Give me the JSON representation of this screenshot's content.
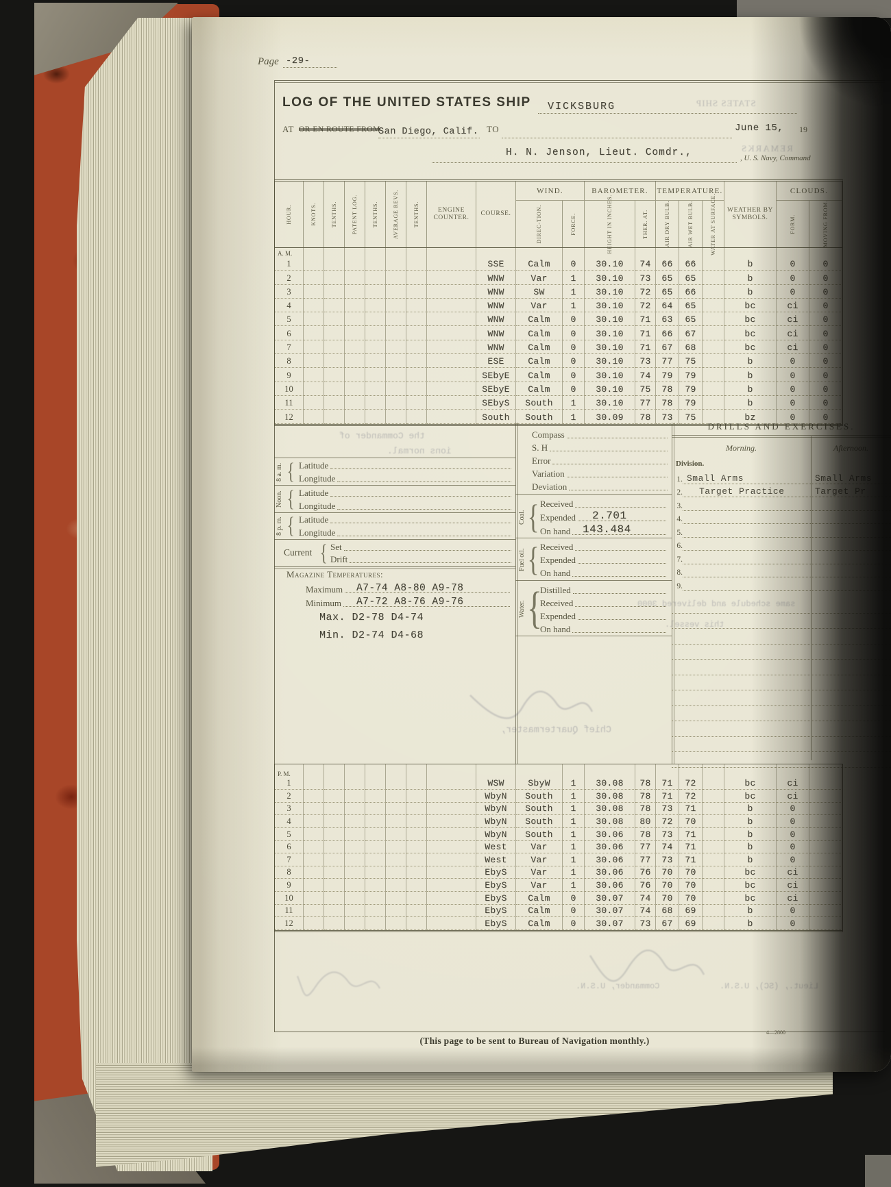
{
  "page": {
    "label": "Page",
    "number": "-29-",
    "footer": "(This page to be sent to Bureau of Navigation monthly.)",
    "form_number": "4—2800"
  },
  "header": {
    "title": "LOG OF THE UNITED STATES SHIP",
    "ship_name": "VICKSBURG",
    "at_label": "AT",
    "route_label": "OR EN ROUTE FROM",
    "from_value": "San Diego, Calif.",
    "to_label": "TO",
    "date_value": "June 15,",
    "year_prefix": "19",
    "commander_value": "H. N. Jenson, Lieut. Comdr.,",
    "commander_suffix": ", U. S. Navy, Command"
  },
  "log_table": {
    "groups": {
      "wind": "WIND.",
      "barometer": "BAROMETER.",
      "temperature": "TEMPERATURE.",
      "clouds": "CLOUDS."
    },
    "columns": {
      "hour": "Hour.",
      "knots": "Knots.",
      "tenths1": "Tenths.",
      "patent_log": "Patent Log.",
      "tenths2": "Tenths.",
      "avg_revs": "Average Revs.",
      "tenths3": "Tenths.",
      "engine_counter": "Engine Counter.",
      "course": "Course.",
      "wind_direction": "Direc-tion.",
      "wind_force": "Force.",
      "barometer_height": "Height in Inches.",
      "ther_at": "Ther. At.",
      "air_dry": "Air Dry Bulb.",
      "air_wet": "Air Wet Bulb.",
      "water_surface": "Water at Surface.",
      "weather": "Weather by Symbols.",
      "clouds_form": "Form.",
      "clouds_moving": "Moving From."
    },
    "am_label": "A. M.",
    "pm_label": "P. M.",
    "am_rows": [
      {
        "hour": "1",
        "course": "SSE",
        "wind_direction": "Calm",
        "wind_force": "0",
        "barometer_height": "30.10",
        "ther_at": "74",
        "air_dry": "66",
        "air_wet": "66",
        "weather": "b",
        "clouds_form": "0",
        "clouds_moving": "0"
      },
      {
        "hour": "2",
        "course": "WNW",
        "wind_direction": "Var",
        "wind_force": "1",
        "barometer_height": "30.10",
        "ther_at": "73",
        "air_dry": "65",
        "air_wet": "65",
        "weather": "b",
        "clouds_form": "0",
        "clouds_moving": "0"
      },
      {
        "hour": "3",
        "course": "WNW",
        "wind_direction": "SW",
        "wind_force": "1",
        "barometer_height": "30.10",
        "ther_at": "72",
        "air_dry": "65",
        "air_wet": "66",
        "weather": "b",
        "clouds_form": "0",
        "clouds_moving": "0"
      },
      {
        "hour": "4",
        "course": "WNW",
        "wind_direction": "Var",
        "wind_force": "1",
        "barometer_height": "30.10",
        "ther_at": "72",
        "air_dry": "64",
        "air_wet": "65",
        "weather": "bc",
        "clouds_form": "ci",
        "clouds_moving": "0"
      },
      {
        "hour": "5",
        "course": "WNW",
        "wind_direction": "Calm",
        "wind_force": "0",
        "barometer_height": "30.10",
        "ther_at": "71",
        "air_dry": "63",
        "air_wet": "65",
        "weather": "bc",
        "clouds_form": "ci",
        "clouds_moving": "0"
      },
      {
        "hour": "6",
        "course": "WNW",
        "wind_direction": "Calm",
        "wind_force": "0",
        "barometer_height": "30.10",
        "ther_at": "71",
        "air_dry": "66",
        "air_wet": "67",
        "weather": "bc",
        "clouds_form": "ci",
        "clouds_moving": "0"
      },
      {
        "hour": "7",
        "course": "WNW",
        "wind_direction": "Calm",
        "wind_force": "0",
        "barometer_height": "30.10",
        "ther_at": "71",
        "air_dry": "67",
        "air_wet": "68",
        "weather": "bc",
        "clouds_form": "ci",
        "clouds_moving": "0"
      },
      {
        "hour": "8",
        "course": "ESE",
        "wind_direction": "Calm",
        "wind_force": "0",
        "barometer_height": "30.10",
        "ther_at": "73",
        "air_dry": "77",
        "air_wet": "75",
        "weather": "b",
        "clouds_form": "0",
        "clouds_moving": "0"
      },
      {
        "hour": "9",
        "course": "SEbyE",
        "wind_direction": "Calm",
        "wind_force": "0",
        "barometer_height": "30.10",
        "ther_at": "74",
        "air_dry": "79",
        "air_wet": "79",
        "weather": "b",
        "clouds_form": "0",
        "clouds_moving": "0"
      },
      {
        "hour": "10",
        "course": "SEbyE",
        "wind_direction": "Calm",
        "wind_force": "0",
        "barometer_height": "30.10",
        "ther_at": "75",
        "air_dry": "78",
        "air_wet": "79",
        "weather": "b",
        "clouds_form": "0",
        "clouds_moving": "0"
      },
      {
        "hour": "11",
        "course": "SEbyS",
        "wind_direction": "South",
        "wind_force": "1",
        "barometer_height": "30.10",
        "ther_at": "77",
        "air_dry": "78",
        "air_wet": "79",
        "weather": "b",
        "clouds_form": "0",
        "clouds_moving": "0"
      },
      {
        "hour": "12",
        "course": "South",
        "wind_direction": "South",
        "wind_force": "1",
        "barometer_height": "30.09",
        "ther_at": "78",
        "air_dry": "73",
        "air_wet": "75",
        "weather": "bz",
        "clouds_form": "0",
        "clouds_moving": "0"
      }
    ],
    "pm_rows": [
      {
        "hour": "1",
        "course": "WSW",
        "wind_direction": "SbyW",
        "wind_force": "1",
        "barometer_height": "30.08",
        "ther_at": "78",
        "air_dry": "71",
        "air_wet": "72",
        "weather": "bc",
        "clouds_form": "ci",
        "clouds_moving": ""
      },
      {
        "hour": "2",
        "course": "WbyN",
        "wind_direction": "South",
        "wind_force": "1",
        "barometer_height": "30.08",
        "ther_at": "78",
        "air_dry": "71",
        "air_wet": "72",
        "weather": "bc",
        "clouds_form": "ci",
        "clouds_moving": ""
      },
      {
        "hour": "3",
        "course": "WbyN",
        "wind_direction": "South",
        "wind_force": "1",
        "barometer_height": "30.08",
        "ther_at": "78",
        "air_dry": "73",
        "air_wet": "71",
        "weather": "b",
        "clouds_form": "0",
        "clouds_moving": ""
      },
      {
        "hour": "4",
        "course": "WbyN",
        "wind_direction": "South",
        "wind_force": "1",
        "barometer_height": "30.08",
        "ther_at": "80",
        "air_dry": "72",
        "air_wet": "70",
        "weather": "b",
        "clouds_form": "0",
        "clouds_moving": ""
      },
      {
        "hour": "5",
        "course": "WbyN",
        "wind_direction": "South",
        "wind_force": "1",
        "barometer_height": "30.06",
        "ther_at": "78",
        "air_dry": "73",
        "air_wet": "71",
        "weather": "b",
        "clouds_form": "0",
        "clouds_moving": ""
      },
      {
        "hour": "6",
        "course": "West",
        "wind_direction": "Var",
        "wind_force": "1",
        "barometer_height": "30.06",
        "ther_at": "77",
        "air_dry": "74",
        "air_wet": "71",
        "weather": "b",
        "clouds_form": "0",
        "clouds_moving": ""
      },
      {
        "hour": "7",
        "course": "West",
        "wind_direction": "Var",
        "wind_force": "1",
        "barometer_height": "30.06",
        "ther_at": "77",
        "air_dry": "73",
        "air_wet": "71",
        "weather": "b",
        "clouds_form": "0",
        "clouds_moving": ""
      },
      {
        "hour": "8",
        "course": "EbyS",
        "wind_direction": "Var",
        "wind_force": "1",
        "barometer_height": "30.06",
        "ther_at": "76",
        "air_dry": "70",
        "air_wet": "70",
        "weather": "bc",
        "clouds_form": "ci",
        "clouds_moving": ""
      },
      {
        "hour": "9",
        "course": "EbyS",
        "wind_direction": "Var",
        "wind_force": "1",
        "barometer_height": "30.06",
        "ther_at": "76",
        "air_dry": "70",
        "air_wet": "70",
        "weather": "bc",
        "clouds_form": "ci",
        "clouds_moving": ""
      },
      {
        "hour": "10",
        "course": "EbyS",
        "wind_direction": "Calm",
        "wind_force": "0",
        "barometer_height": "30.07",
        "ther_at": "74",
        "air_dry": "70",
        "air_wet": "70",
        "weather": "bc",
        "clouds_form": "ci",
        "clouds_moving": ""
      },
      {
        "hour": "11",
        "course": "EbyS",
        "wind_direction": "Calm",
        "wind_force": "0",
        "barometer_height": "30.07",
        "ther_at": "74",
        "air_dry": "68",
        "air_wet": "69",
        "weather": "b",
        "clouds_form": "0",
        "clouds_moving": ""
      },
      {
        "hour": "12",
        "course": "EbyS",
        "wind_direction": "Calm",
        "wind_force": "0",
        "barometer_height": "30.07",
        "ther_at": "73",
        "air_dry": "67",
        "air_wet": "69",
        "weather": "b",
        "clouds_form": "0",
        "clouds_moving": ""
      }
    ]
  },
  "position_section": {
    "groups": [
      {
        "label": "8 a. m."
      },
      {
        "label": "Noon."
      },
      {
        "label": "8 p. m."
      }
    ],
    "latitude_label": "Latitude",
    "longitude_label": "Longitude",
    "current_label": "Current",
    "set_label": "Set",
    "drift_label": "Drift"
  },
  "magazine": {
    "title": "Magazine Temperatures:",
    "maximum_label": "Maximum",
    "maximum_value": "A7-74 A8-80 A9-78",
    "minimum_label": "Minimum",
    "minimum_value": "A7-72 A8-76 A9-76",
    "max_d_value": "Max. D2-78  D4-74",
    "min_d_value": "Min. D2-74  D4-68"
  },
  "compass_section": {
    "rows": [
      "Compass",
      "S. H",
      "Error",
      "Variation",
      "Deviation"
    ]
  },
  "coal": {
    "label": "Coal.",
    "received_label": "Received",
    "expended_label": "Expended",
    "expended_value": "2.701",
    "on_hand_label": "On hand",
    "on_hand_value": "143.484"
  },
  "fuel_oil": {
    "label": "Fuel oil.",
    "rows": [
      "Received",
      "Expended",
      "On hand"
    ]
  },
  "water": {
    "label": "Water.",
    "rows": [
      "Distilled",
      "Received",
      "Expended",
      "On hand"
    ]
  },
  "drills": {
    "title": "DRILLS AND EXERCISES.",
    "morning_label": "Morning.",
    "afternoon_label": "Afternoon.",
    "division_label": "Division.",
    "rows": [
      {
        "num": "1.",
        "morning": "Small Arms",
        "afternoon": "Small Arms"
      },
      {
        "num": "2.",
        "morning": "Target Practice",
        "afternoon": "Target Pr"
      },
      {
        "num": "3.",
        "morning": "",
        "afternoon": ""
      },
      {
        "num": "4.",
        "morning": "",
        "afternoon": ""
      },
      {
        "num": "5.",
        "morning": "",
        "afternoon": ""
      },
      {
        "num": "6.",
        "morning": "",
        "afternoon": ""
      },
      {
        "num": "7.",
        "morning": "",
        "afternoon": ""
      },
      {
        "num": "8.",
        "morning": "",
        "afternoon": ""
      },
      {
        "num": "9.",
        "morning": "",
        "afternoon": ""
      }
    ]
  },
  "bleedthrough": {
    "fragments": [
      "STATES SHIP",
      "REMARKS",
      "the Commander of",
      "ions normal.",
      "same schedule and delivered 3000",
      "this vessel.",
      "Chief Quartermaster,",
      "Commander, U.S.N.",
      "Lieut., (SC), U.S.N."
    ]
  }
}
